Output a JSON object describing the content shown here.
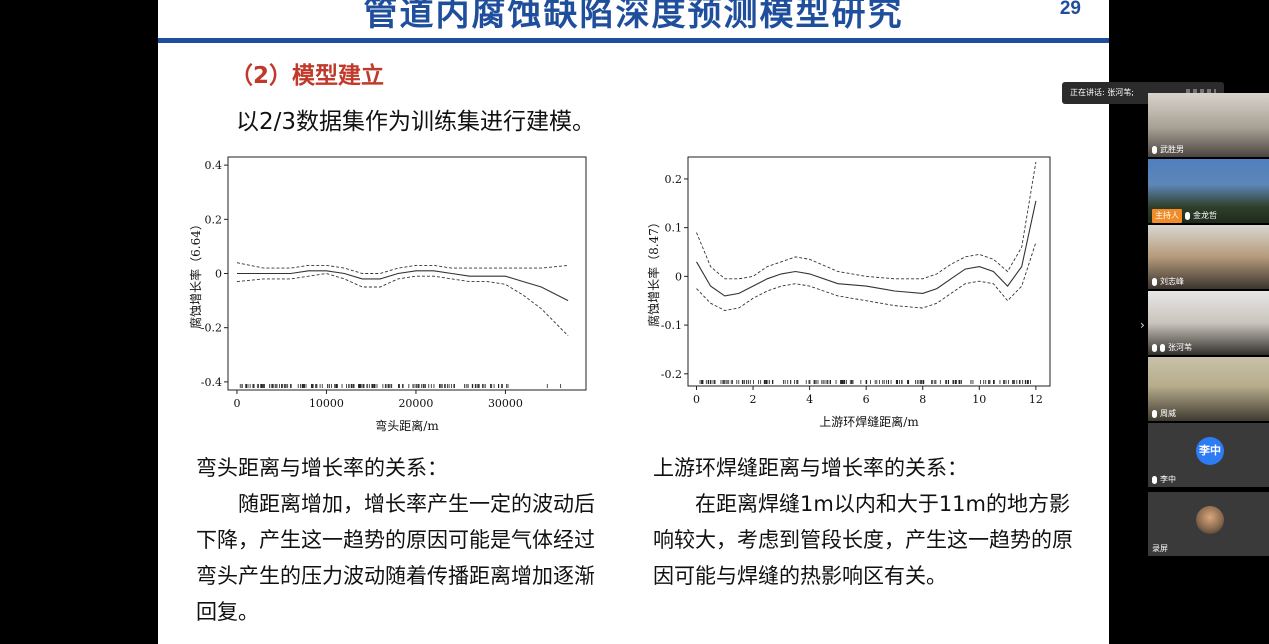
{
  "slide": {
    "title": "管道内腐蚀缺陷深度预测模型研究",
    "page_number": "29",
    "section_heading": "（2）模型建立",
    "intro": "以2/3数据集作为训练集进行建模。"
  },
  "chart_data": [
    {
      "type": "line",
      "xlabel": "弯头距离/m",
      "ylabel": "腐蚀增长率（6.64）",
      "xlim": [
        -1000,
        39000
      ],
      "ylim": [
        -0.43,
        0.43
      ],
      "xticks": [
        "0",
        "10000",
        "20000",
        "30000"
      ],
      "xtick_values": [
        0,
        10000,
        20000,
        30000
      ],
      "yticks": [
        "-0.4",
        "-0.2",
        "0",
        "0.2",
        "0.4"
      ],
      "ytick_values": [
        -0.4,
        -0.2,
        0,
        0.2,
        0.4
      ],
      "grid": false,
      "series": [
        {
          "x": [
            0,
            3000,
            6000,
            8000,
            10000,
            12000,
            14000,
            16000,
            18000,
            20000,
            22000,
            24000,
            26000,
            28000,
            30000,
            32000,
            34000,
            37000
          ],
          "values": [
            0.0,
            0.0,
            0.0,
            0.01,
            0.01,
            0.0,
            -0.02,
            -0.02,
            0.0,
            0.01,
            0.01,
            0.0,
            -0.01,
            -0.01,
            -0.01,
            -0.03,
            -0.05,
            -0.1
          ]
        },
        {
          "x": [
            0,
            3000,
            6000,
            8000,
            10000,
            12000,
            14000,
            16000,
            18000,
            20000,
            22000,
            24000,
            26000,
            28000,
            30000,
            32000,
            34000,
            37000
          ],
          "values": [
            0.04,
            0.02,
            0.02,
            0.03,
            0.03,
            0.02,
            0.0,
            0.0,
            0.02,
            0.03,
            0.03,
            0.02,
            0.02,
            0.02,
            0.02,
            0.02,
            0.02,
            0.03
          ]
        },
        {
          "x": [
            0,
            3000,
            6000,
            8000,
            10000,
            12000,
            14000,
            16000,
            18000,
            20000,
            22000,
            24000,
            26000,
            28000,
            30000,
            32000,
            34000,
            37000
          ],
          "values": [
            -0.03,
            -0.02,
            -0.02,
            -0.01,
            0.0,
            -0.02,
            -0.05,
            -0.05,
            -0.02,
            -0.01,
            -0.01,
            -0.02,
            -0.03,
            -0.03,
            -0.04,
            -0.08,
            -0.13,
            -0.23
          ]
        }
      ]
    },
    {
      "type": "line",
      "xlabel": "上游环焊缝距离/m",
      "ylabel": "腐蚀增长率（8.47）",
      "xlim": [
        -0.3,
        12.5
      ],
      "ylim": [
        -0.225,
        0.245
      ],
      "xticks": [
        "0",
        "2",
        "4",
        "6",
        "8",
        "10",
        "12"
      ],
      "xtick_values": [
        0,
        2,
        4,
        6,
        8,
        10,
        12
      ],
      "yticks": [
        "-0.2",
        "-0.1",
        "0",
        "0.1",
        "0.2"
      ],
      "ytick_values": [
        -0.2,
        -0.1,
        0,
        0.1,
        0.2
      ],
      "grid": false,
      "series": [
        {
          "x": [
            0,
            0.5,
            1,
            1.5,
            2,
            2.5,
            3,
            3.5,
            4,
            5,
            6,
            7,
            8,
            8.5,
            9,
            9.5,
            10,
            10.5,
            11,
            11.5,
            12
          ],
          "values": [
            0.03,
            -0.02,
            -0.04,
            -0.035,
            -0.02,
            -0.005,
            0.005,
            0.01,
            0.005,
            -0.015,
            -0.02,
            -0.03,
            -0.035,
            -0.025,
            -0.005,
            0.015,
            0.02,
            0.01,
            -0.02,
            0.02,
            0.155
          ]
        },
        {
          "x": [
            0,
            0.5,
            1,
            1.5,
            2,
            2.5,
            3,
            3.5,
            4,
            5,
            6,
            7,
            8,
            8.5,
            9,
            9.5,
            10,
            10.5,
            11,
            11.5,
            12
          ],
          "values": [
            0.09,
            0.02,
            -0.005,
            -0.005,
            0.0,
            0.02,
            0.03,
            0.04,
            0.035,
            0.01,
            0.0,
            -0.005,
            -0.005,
            0.005,
            0.025,
            0.04,
            0.045,
            0.035,
            0.01,
            0.06,
            0.235
          ]
        },
        {
          "x": [
            0,
            0.5,
            1,
            1.5,
            2,
            2.5,
            3,
            3.5,
            4,
            5,
            6,
            7,
            8,
            8.5,
            9,
            9.5,
            10,
            10.5,
            11,
            11.5,
            12
          ],
          "values": [
            -0.025,
            -0.055,
            -0.07,
            -0.065,
            -0.045,
            -0.03,
            -0.02,
            -0.015,
            -0.02,
            -0.04,
            -0.05,
            -0.06,
            -0.065,
            -0.055,
            -0.035,
            -0.015,
            -0.01,
            -0.015,
            -0.05,
            -0.02,
            0.07
          ]
        }
      ]
    }
  ],
  "captions": {
    "left_title": "弯头距离与增长率的关系：",
    "left_body": "随距离增加，增长率产生一定的波动后下降，产生这一趋势的原因可能是气体经过弯头产生的压力波动随着传播距离增加逐渐回复。",
    "right_title": "上游环焊缝距离与增长率的关系：",
    "right_body": "在距离焊缝1m以内和大于11m的地方影响较大，考虑到管段长度，产生这一趋势的原因可能与焊缝的热影响区有关。"
  },
  "meeting": {
    "speaking_label": "正在讲话: 张河苇;",
    "host_badge": "主持人",
    "participants": [
      {
        "name": "武胜男"
      },
      {
        "name": "金龙哲"
      },
      {
        "name": "刘志峰"
      },
      {
        "name": "张河苇"
      },
      {
        "name": "周威"
      },
      {
        "name": "李中",
        "avatar": "李中"
      },
      {
        "name": "录屏"
      }
    ],
    "colors": {
      "avatar": "#2d7cf6",
      "host_badge": "#f28c28"
    }
  }
}
